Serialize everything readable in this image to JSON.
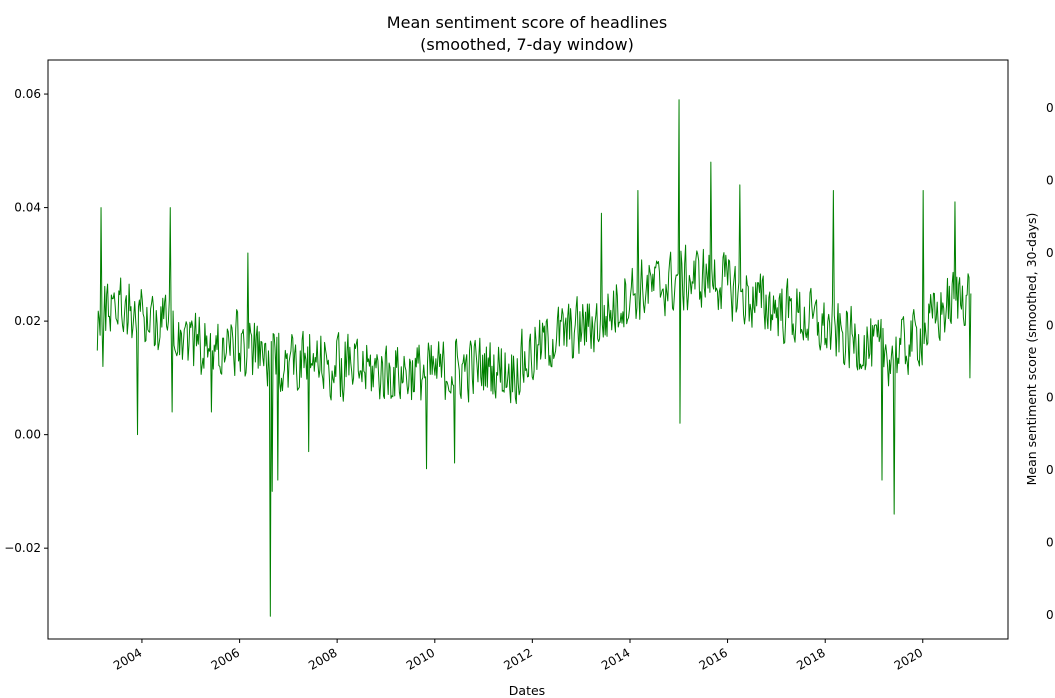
{
  "chart_data": {
    "type": "line",
    "title": "Mean sentiment score of headlines",
    "subtitle": "(smoothed, 7-day window)",
    "xlabel": "Dates",
    "ylabel": "",
    "ylabel_right": "Mean sentiment score (smoothed, 30-days)",
    "xlim": [
      "2002-01-28",
      "2021-09-30"
    ],
    "ylim": [
      -0.036,
      0.066
    ],
    "x_ticks": [
      "2004",
      "2006",
      "2008",
      "2010",
      "2012",
      "2014",
      "2016",
      "2018",
      "2020"
    ],
    "y_ticks": [
      "0.06",
      "0.04",
      "0.02",
      "0.00",
      "−0.02"
    ],
    "right_y_ticks": [
      "0",
      "0",
      "0",
      "0",
      "0",
      "0",
      "0",
      "0"
    ],
    "grid": false,
    "line_color": "#008000",
    "series": [
      {
        "sample_interval_days": 7,
        "x_start": "2003-02-01",
        "x_end": "2020-12-31",
        "anchors": [
          [
            "2003-02-01",
            0.02
          ],
          [
            "2003-06-01",
            0.024
          ],
          [
            "2003-12-01",
            0.021
          ],
          [
            "2004-06-01",
            0.02
          ],
          [
            "2005-01-01",
            0.017
          ],
          [
            "2005-06-01",
            0.015
          ],
          [
            "2006-01-01",
            0.016
          ],
          [
            "2006-08-01",
            0.013
          ],
          [
            "2007-01-01",
            0.013
          ],
          [
            "2008-01-01",
            0.012
          ],
          [
            "2009-01-01",
            0.011
          ],
          [
            "2010-01-01",
            0.011
          ],
          [
            "2011-01-01",
            0.012
          ],
          [
            "2011-08-01",
            0.011
          ],
          [
            "2012-06-01",
            0.017
          ],
          [
            "2013-06-01",
            0.02
          ],
          [
            "2014-01-01",
            0.025
          ],
          [
            "2015-01-01",
            0.027
          ],
          [
            "2015-09-01",
            0.028
          ],
          [
            "2016-06-01",
            0.024
          ],
          [
            "2017-06-01",
            0.021
          ],
          [
            "2018-06-01",
            0.017
          ],
          [
            "2019-06-01",
            0.014
          ],
          [
            "2020-01-01",
            0.018
          ],
          [
            "2020-06-01",
            0.022
          ],
          [
            "2020-12-31",
            0.026
          ]
        ],
        "noise_amplitude": 0.0065,
        "spikes": [
          [
            "2003-03-01",
            0.04
          ],
          [
            "2003-03-15",
            0.012
          ],
          [
            "2003-12-01",
            0.0
          ],
          [
            "2004-08-01",
            0.04
          ],
          [
            "2004-08-15",
            0.004
          ],
          [
            "2005-06-01",
            0.004
          ],
          [
            "2006-03-01",
            0.032
          ],
          [
            "2006-08-20",
            -0.032
          ],
          [
            "2006-09-01",
            -0.01
          ],
          [
            "2006-10-15",
            -0.008
          ],
          [
            "2007-06-01",
            -0.003
          ],
          [
            "2009-11-01",
            -0.006
          ],
          [
            "2010-06-01",
            -0.005
          ],
          [
            "2013-06-01",
            0.039
          ],
          [
            "2014-03-01",
            0.043
          ],
          [
            "2015-01-01",
            0.059
          ],
          [
            "2015-01-10",
            0.002
          ],
          [
            "2015-09-01",
            0.048
          ],
          [
            "2016-04-01",
            0.044
          ],
          [
            "2018-03-01",
            0.043
          ],
          [
            "2019-03-01",
            -0.008
          ],
          [
            "2019-06-01",
            -0.014
          ],
          [
            "2020-01-01",
            0.043
          ],
          [
            "2020-09-01",
            0.041
          ],
          [
            "2020-12-20",
            0.01
          ]
        ]
      }
    ]
  }
}
